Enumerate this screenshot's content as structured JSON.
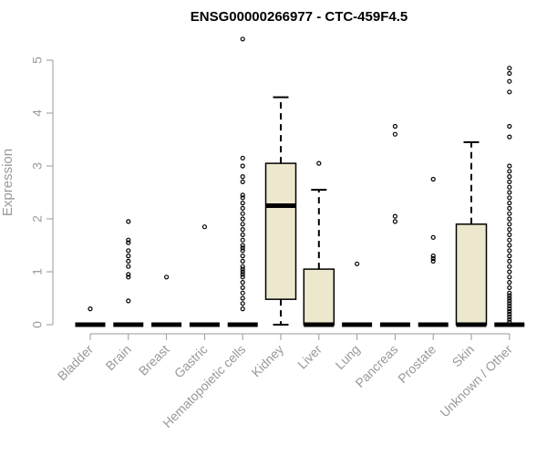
{
  "chart_data": {
    "type": "boxplot",
    "title": "ENSG00000266977 - CTC-459F4.5",
    "xlabel": "",
    "ylabel": "Expression",
    "ylim": [
      0,
      5
    ],
    "yticks": [
      "0",
      "1",
      "2",
      "3",
      "4",
      "5"
    ],
    "grid": false,
    "legend": "none",
    "colors": {
      "box_fill": "#ede7cd",
      "stroke": "#000000",
      "axis": "#999999"
    },
    "categories": [
      "Bladder",
      "Brain",
      "Breast",
      "Gastric",
      "Hematopoietic cells",
      "Kidney",
      "Liver",
      "Lung",
      "Pancreas",
      "Prostate",
      "Skin",
      "Unknown / Other"
    ],
    "boxes": [
      {
        "category": "Bladder",
        "min": 0,
        "q1": 0,
        "median": 0,
        "q3": 0,
        "max": 0,
        "outliers": [
          0.3
        ]
      },
      {
        "category": "Brain",
        "min": 0,
        "q1": 0,
        "median": 0,
        "q3": 0,
        "max": 0,
        "outliers": [
          1.95,
          1.6,
          1.55,
          1.4,
          1.3,
          1.2,
          1.1,
          0.95,
          0.9,
          0.45
        ]
      },
      {
        "category": "Breast",
        "min": 0,
        "q1": 0,
        "median": 0,
        "q3": 0,
        "max": 0,
        "outliers": [
          0.9
        ]
      },
      {
        "category": "Gastric",
        "min": 0,
        "q1": 0,
        "median": 0,
        "q3": 0,
        "max": 0,
        "outliers": [
          1.85
        ]
      },
      {
        "category": "Hematopoietic cells",
        "min": 0,
        "q1": 0,
        "median": 0,
        "q3": 0,
        "max": 0,
        "outliers": [
          5.4,
          3.15,
          3.0,
          2.8,
          2.7,
          2.45,
          2.4,
          2.3,
          2.2,
          2.1,
          2.0,
          1.9,
          1.8,
          1.7,
          1.6,
          1.5,
          1.45,
          1.4,
          1.3,
          1.2,
          1.1,
          1.05,
          1.0,
          0.95,
          0.9,
          0.8,
          0.7,
          0.6,
          0.5,
          0.4,
          0.3
        ]
      },
      {
        "category": "Kidney",
        "min": 0,
        "q1": 0.48,
        "median": 2.25,
        "q3": 3.05,
        "max": 4.3,
        "outliers": []
      },
      {
        "category": "Liver",
        "min": 0,
        "q1": 0,
        "median": 0,
        "q3": 1.05,
        "max": 2.55,
        "outliers": [
          3.05
        ]
      },
      {
        "category": "Lung",
        "min": 0,
        "q1": 0,
        "median": 0,
        "q3": 0,
        "max": 0,
        "outliers": [
          1.15
        ]
      },
      {
        "category": "Pancreas",
        "min": 0,
        "q1": 0,
        "median": 0,
        "q3": 0,
        "max": 0,
        "outliers": [
          3.75,
          3.6,
          2.05,
          1.95
        ]
      },
      {
        "category": "Prostate",
        "min": 0,
        "q1": 0,
        "median": 0,
        "q3": 0,
        "max": 0,
        "outliers": [
          2.75,
          1.65,
          1.3,
          1.25,
          1.2
        ]
      },
      {
        "category": "Skin",
        "min": 0,
        "q1": 0,
        "median": 0,
        "q3": 1.9,
        "max": 3.45,
        "outliers": []
      },
      {
        "category": "Unknown / Other",
        "min": 0,
        "q1": 0,
        "median": 0,
        "q3": 0,
        "max": 0,
        "outliers": [
          4.85,
          4.75,
          4.6,
          4.4,
          3.75,
          3.55,
          3.0,
          2.9,
          2.8,
          2.7,
          2.6,
          2.5,
          2.4,
          2.3,
          2.2,
          2.1,
          2.0,
          1.9,
          1.8,
          1.7,
          1.6,
          1.5,
          1.4,
          1.3,
          1.2,
          1.1,
          1.0,
          0.9,
          0.8,
          0.7,
          0.6,
          0.55,
          0.5,
          0.45,
          0.4,
          0.35,
          0.3,
          0.25,
          0.2,
          0.15,
          0.1,
          0.05
        ]
      }
    ]
  }
}
